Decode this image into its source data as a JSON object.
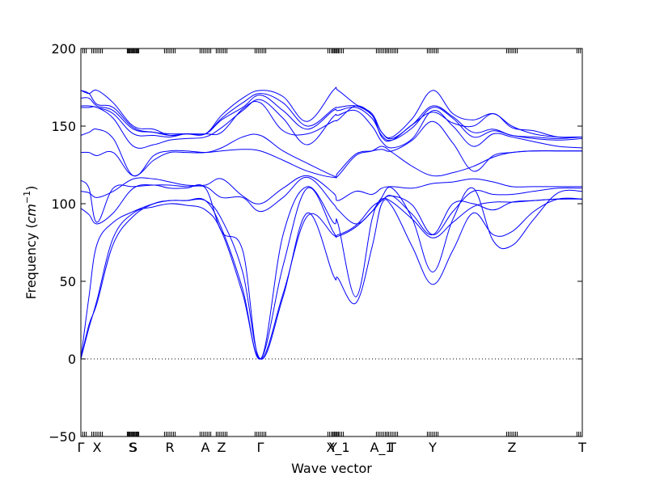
{
  "chart_data": {
    "type": "line",
    "title": "",
    "xlabel": "Wave vector",
    "ylabel": "Frequency ($cm^{-1}$)",
    "ylabel_main": "Frequency (",
    "ylabel_unit": "cm",
    "ylabel_sup": "−1",
    "ylabel_close": ")",
    "ylim": [
      -50,
      200
    ],
    "yticks": [
      -50,
      0,
      50,
      100,
      150,
      200
    ],
    "ytick_labels": [
      "−50",
      "0",
      "50",
      "100",
      "150",
      "200"
    ],
    "x_range": [
      0,
      6.2
    ],
    "high_symmetry_points": [
      {
        "label": "Γ",
        "x": 0.0
      },
      {
        "label": "X",
        "x": 0.2
      },
      {
        "label": "S",
        "x": 0.64
      },
      {
        "label": "S",
        "x": 0.65
      },
      {
        "label": "R",
        "x": 1.1
      },
      {
        "label": "A",
        "x": 1.54
      },
      {
        "label": "Z",
        "x": 1.74
      },
      {
        "label": "Γ",
        "x": 2.22
      },
      {
        "label": "Y",
        "x": 3.12
      },
      {
        "label": "X_1",
        "x": 3.18
      },
      {
        "label": "A_1",
        "x": 3.72
      },
      {
        "label": "T",
        "x": 3.85
      },
      {
        "label": "Y",
        "x": 4.35
      },
      {
        "label": "Z",
        "x": 5.33
      },
      {
        "label": "T",
        "x": 6.2
      }
    ],
    "zero_line": {
      "y": 0,
      "style": "dotted"
    },
    "line_color": "#0000ff",
    "series": [
      {
        "x": [
          0,
          0.1,
          0.2,
          0.4,
          0.65,
          0.9,
          1.1,
          1.3,
          1.54,
          1.74,
          2.0,
          2.22,
          2.5,
          2.8,
          3.12,
          3.18,
          3.4,
          3.6,
          3.72,
          3.85,
          4.1,
          4.35,
          4.6,
          4.85,
          5.1,
          5.33,
          5.6,
          5.9,
          6.2
        ],
        "y": [
          0,
          20,
          38,
          78,
          94,
          98,
          100,
          99,
          96,
          82,
          42,
          0,
          42,
          92,
          80,
          79,
          85,
          95,
          103,
          101,
          90,
          78,
          88,
          98,
          101,
          101,
          102,
          103,
          103
        ]
      },
      {
        "x": [
          0,
          0.1,
          0.2,
          0.4,
          0.65,
          0.9,
          1.1,
          1.3,
          1.54,
          1.74,
          2.0,
          2.22,
          2.5,
          2.8,
          3.12,
          3.18,
          3.4,
          3.6,
          3.72,
          3.85,
          4.1,
          4.35,
          4.6,
          4.85,
          5.1,
          5.33,
          5.6,
          5.9,
          6.2
        ],
        "y": [
          0,
          22,
          36,
          74,
          92,
          100,
          102,
          102,
          102,
          84,
          45,
          0,
          60,
          110,
          82,
          80,
          86,
          98,
          102,
          105,
          93,
          80,
          100,
          100,
          96,
          101,
          102,
          103,
          103
        ]
      },
      {
        "x": [
          0,
          0.1,
          0.2,
          0.4,
          0.65,
          0.9,
          1.1,
          1.3,
          1.54,
          1.74,
          2.0,
          2.22,
          2.5,
          2.8,
          3.12,
          3.18,
          3.4,
          3.6,
          3.72,
          3.85,
          4.1,
          4.35,
          4.6,
          4.85,
          5.1,
          5.33,
          5.6,
          5.9,
          6.2
        ],
        "y": [
          0,
          40,
          74,
          88,
          95,
          100,
          102,
          102,
          102,
          90,
          56,
          0,
          40,
          94,
          54,
          52,
          36,
          72,
          100,
          98,
          72,
          48,
          70,
          94,
          80,
          82,
          95,
          103,
          103
        ]
      },
      {
        "x": [
          0,
          0.1,
          0.2,
          0.4,
          0.65,
          0.9,
          1.1,
          1.3,
          1.54,
          1.74,
          2.0,
          2.22,
          2.5,
          2.8,
          3.12,
          3.18,
          3.4,
          3.6,
          3.72,
          3.85,
          4.1,
          4.35,
          4.6,
          4.85,
          5.1,
          5.33,
          5.6,
          5.9,
          6.2
        ],
        "y": [
          97,
          93,
          87,
          94,
          110,
          112,
          110,
          110,
          110,
          82,
          70,
          0,
          80,
          111,
          88,
          87,
          40,
          90,
          104,
          110,
          90,
          56,
          90,
          110,
          76,
          73,
          90,
          107,
          108
        ]
      },
      {
        "x": [
          0,
          0.1,
          0.2,
          0.4,
          0.65,
          0.9,
          1.1,
          1.3,
          1.54,
          1.74,
          2.0,
          2.22,
          2.5,
          2.8,
          3.12,
          3.18,
          3.4,
          3.6,
          3.72,
          3.85,
          4.1,
          4.35,
          4.6,
          4.85,
          5.1,
          5.33,
          5.6,
          5.9,
          6.2
        ],
        "y": [
          115,
          110,
          88,
          110,
          111,
          112,
          112,
          111,
          111,
          104,
          104,
          95,
          104,
          117,
          100,
          96,
          87,
          95,
          102,
          105,
          99,
          80,
          95,
          108,
          106,
          106,
          108,
          110,
          110
        ]
      },
      {
        "x": [
          0,
          0.1,
          0.2,
          0.4,
          0.65,
          0.9,
          1.1,
          1.3,
          1.54,
          1.74,
          2.0,
          2.22,
          2.5,
          2.8,
          3.12,
          3.18,
          3.4,
          3.6,
          3.72,
          3.85,
          4.1,
          4.35,
          4.6,
          4.85,
          5.1,
          5.33,
          5.6,
          5.9,
          6.2
        ],
        "y": [
          108,
          107,
          104,
          108,
          116,
          116,
          114,
          112,
          112,
          116,
          105,
          100,
          110,
          118,
          107,
          102,
          108,
          106,
          110,
          111,
          110,
          113,
          114,
          116,
          114,
          111,
          111,
          111,
          111
        ]
      },
      {
        "x": [
          0,
          0.1,
          0.2,
          0.4,
          0.65,
          0.9,
          1.1,
          1.3,
          1.54,
          1.74,
          2.0,
          2.22,
          2.5,
          2.8,
          3.12,
          3.18,
          3.4,
          3.6,
          3.72,
          3.85,
          4.1,
          4.35,
          4.6,
          4.85,
          5.1,
          5.33,
          5.6,
          5.9,
          6.2
        ],
        "y": [
          133,
          133,
          131,
          133,
          118,
          128,
          133,
          133,
          133,
          136,
          143,
          144,
          134,
          126,
          118,
          118,
          131,
          134,
          137,
          133,
          124,
          118,
          120,
          124,
          130,
          133,
          134,
          134,
          134
        ]
      },
      {
        "x": [
          0,
          0.1,
          0.2,
          0.4,
          0.65,
          0.9,
          1.1,
          1.3,
          1.54,
          1.74,
          2.0,
          2.22,
          2.5,
          2.8,
          3.12,
          3.18,
          3.4,
          3.6,
          3.72,
          3.85,
          4.1,
          4.35,
          4.6,
          4.85,
          5.1,
          5.33,
          5.6,
          5.9,
          6.2
        ],
        "y": [
          144,
          146,
          148,
          142,
          118,
          131,
          134,
          134,
          133,
          134,
          135,
          134,
          128,
          121,
          117,
          120,
          132,
          134,
          135,
          134,
          141,
          153,
          139,
          121,
          131,
          133,
          134,
          134,
          134
        ]
      },
      {
        "x": [
          0,
          0.1,
          0.2,
          0.4,
          0.65,
          0.9,
          1.1,
          1.3,
          1.54,
          1.74,
          2.0,
          2.22,
          2.5,
          2.8,
          3.12,
          3.18,
          3.4,
          3.6,
          3.72,
          3.85,
          4.1,
          4.35,
          4.6,
          4.85,
          5.1,
          5.33,
          5.6,
          5.9,
          6.2
        ],
        "y": [
          162,
          162,
          162,
          155,
          137,
          138,
          141,
          142,
          143,
          149,
          160,
          167,
          155,
          138,
          156,
          157,
          160,
          150,
          140,
          136,
          142,
          160,
          150,
          137,
          145,
          143,
          140,
          137,
          136
        ]
      },
      {
        "x": [
          0,
          0.1,
          0.2,
          0.4,
          0.65,
          0.9,
          1.1,
          1.3,
          1.54,
          1.74,
          2.0,
          2.22,
          2.5,
          2.8,
          3.12,
          3.18,
          3.4,
          3.6,
          3.72,
          3.85,
          4.1,
          4.35,
          4.6,
          4.85,
          5.1,
          5.33,
          5.6,
          5.9,
          6.2
        ],
        "y": [
          163,
          163,
          162,
          158,
          145,
          144,
          143,
          145,
          145,
          154,
          162,
          170,
          160,
          148,
          160,
          160,
          162,
          155,
          144,
          141,
          149,
          162,
          155,
          143,
          147,
          144,
          142,
          141,
          142
        ]
      },
      {
        "x": [
          0,
          0.1,
          0.2,
          0.4,
          0.65,
          0.9,
          1.1,
          1.3,
          1.54,
          1.74,
          2.0,
          2.22,
          2.5,
          2.8,
          3.12,
          3.18,
          3.4,
          3.6,
          3.72,
          3.85,
          4.1,
          4.35,
          4.6,
          4.85,
          5.1,
          5.33,
          5.6,
          5.9,
          6.2
        ],
        "y": [
          168,
          168,
          163,
          160,
          148,
          146,
          144,
          145,
          145,
          155,
          165,
          171,
          165,
          150,
          161,
          162,
          163,
          157,
          146,
          142,
          151,
          163,
          156,
          146,
          148,
          144,
          143,
          142,
          143
        ]
      },
      {
        "x": [
          0,
          0.1,
          0.2,
          0.4,
          0.65,
          0.9,
          1.1,
          1.3,
          1.54,
          1.74,
          2.0,
          2.22,
          2.5,
          2.8,
          3.12,
          3.18,
          3.4,
          3.6,
          3.72,
          3.85,
          4.1,
          4.35,
          4.6,
          4.85,
          5.1,
          5.33,
          5.6,
          5.9,
          6.2
        ],
        "y": [
          173,
          171,
          173,
          165,
          150,
          148,
          144,
          145,
          145,
          157,
          168,
          173,
          169,
          153,
          173,
          173,
          164,
          158,
          146,
          143,
          155,
          173,
          158,
          154,
          158,
          150,
          145,
          143,
          143
        ]
      },
      {
        "x": [
          0,
          0.1,
          0.2,
          0.4,
          0.65,
          0.9,
          1.1,
          1.3,
          1.54,
          1.74,
          2.0,
          2.22,
          2.5,
          2.8,
          3.12,
          3.18,
          3.4,
          3.6,
          3.72,
          3.85,
          4.1,
          4.35,
          4.6,
          4.85,
          5.1,
          5.33,
          5.6,
          5.9,
          6.2
        ],
        "y": [
          173,
          171,
          164,
          162,
          149,
          146,
          145,
          145,
          145,
          146,
          161,
          165,
          147,
          145,
          153,
          154,
          163,
          157,
          143,
          141,
          151,
          159,
          152,
          150,
          158,
          149,
          147,
          143,
          143
        ]
      }
    ]
  }
}
